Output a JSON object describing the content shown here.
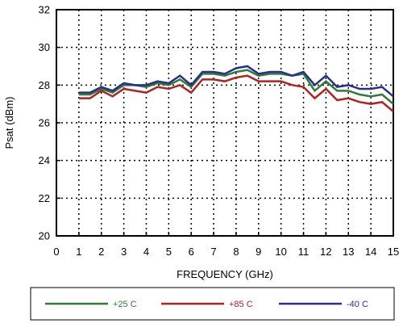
{
  "chart_data": {
    "type": "line",
    "xlabel": "FREQUENCY (GHz)",
    "ylabel": "Psat (dBm)",
    "xlim": [
      0,
      15
    ],
    "ylim": [
      20,
      32
    ],
    "x_ticks": [
      0,
      1,
      2,
      3,
      4,
      5,
      6,
      7,
      8,
      9,
      10,
      11,
      12,
      13,
      14,
      15
    ],
    "y_ticks": [
      20,
      22,
      24,
      26,
      28,
      30,
      32
    ],
    "grid": "dotted",
    "legend_position": "bottom",
    "x": [
      1,
      1.5,
      2,
      2.5,
      3,
      3.5,
      4,
      4.5,
      5,
      5.5,
      6,
      6.5,
      7,
      7.5,
      8,
      8.5,
      9,
      9.5,
      10,
      10.5,
      11,
      11.5,
      12,
      12.5,
      13,
      13.5,
      14,
      14.5,
      15
    ],
    "series": [
      {
        "name": "+25 C",
        "color": "#2e7d32",
        "values": [
          27.5,
          27.5,
          27.8,
          27.6,
          28.0,
          28.0,
          27.9,
          28.1,
          28.0,
          28.3,
          27.9,
          28.6,
          28.6,
          28.5,
          28.7,
          28.8,
          28.5,
          28.6,
          28.6,
          28.5,
          28.6,
          27.7,
          28.2,
          27.7,
          27.7,
          27.5,
          27.4,
          27.5,
          27.0
        ]
      },
      {
        "name": "+85 C",
        "color": "#b22222",
        "values": [
          27.3,
          27.3,
          27.7,
          27.4,
          27.8,
          27.7,
          27.6,
          27.9,
          27.8,
          28.0,
          27.6,
          28.3,
          28.3,
          28.2,
          28.4,
          28.5,
          28.2,
          28.2,
          28.2,
          28.0,
          27.9,
          27.3,
          27.8,
          27.2,
          27.3,
          27.1,
          27.0,
          27.1,
          26.6
        ]
      },
      {
        "name": "-40 C",
        "color": "#2a2f8f",
        "values": [
          27.6,
          27.6,
          27.9,
          27.7,
          28.1,
          28.0,
          28.0,
          28.2,
          28.1,
          28.5,
          28.0,
          28.7,
          28.7,
          28.6,
          28.9,
          29.0,
          28.6,
          28.7,
          28.7,
          28.5,
          28.7,
          28.0,
          28.5,
          27.9,
          28.0,
          27.8,
          27.8,
          27.9,
          27.4
        ]
      }
    ]
  }
}
